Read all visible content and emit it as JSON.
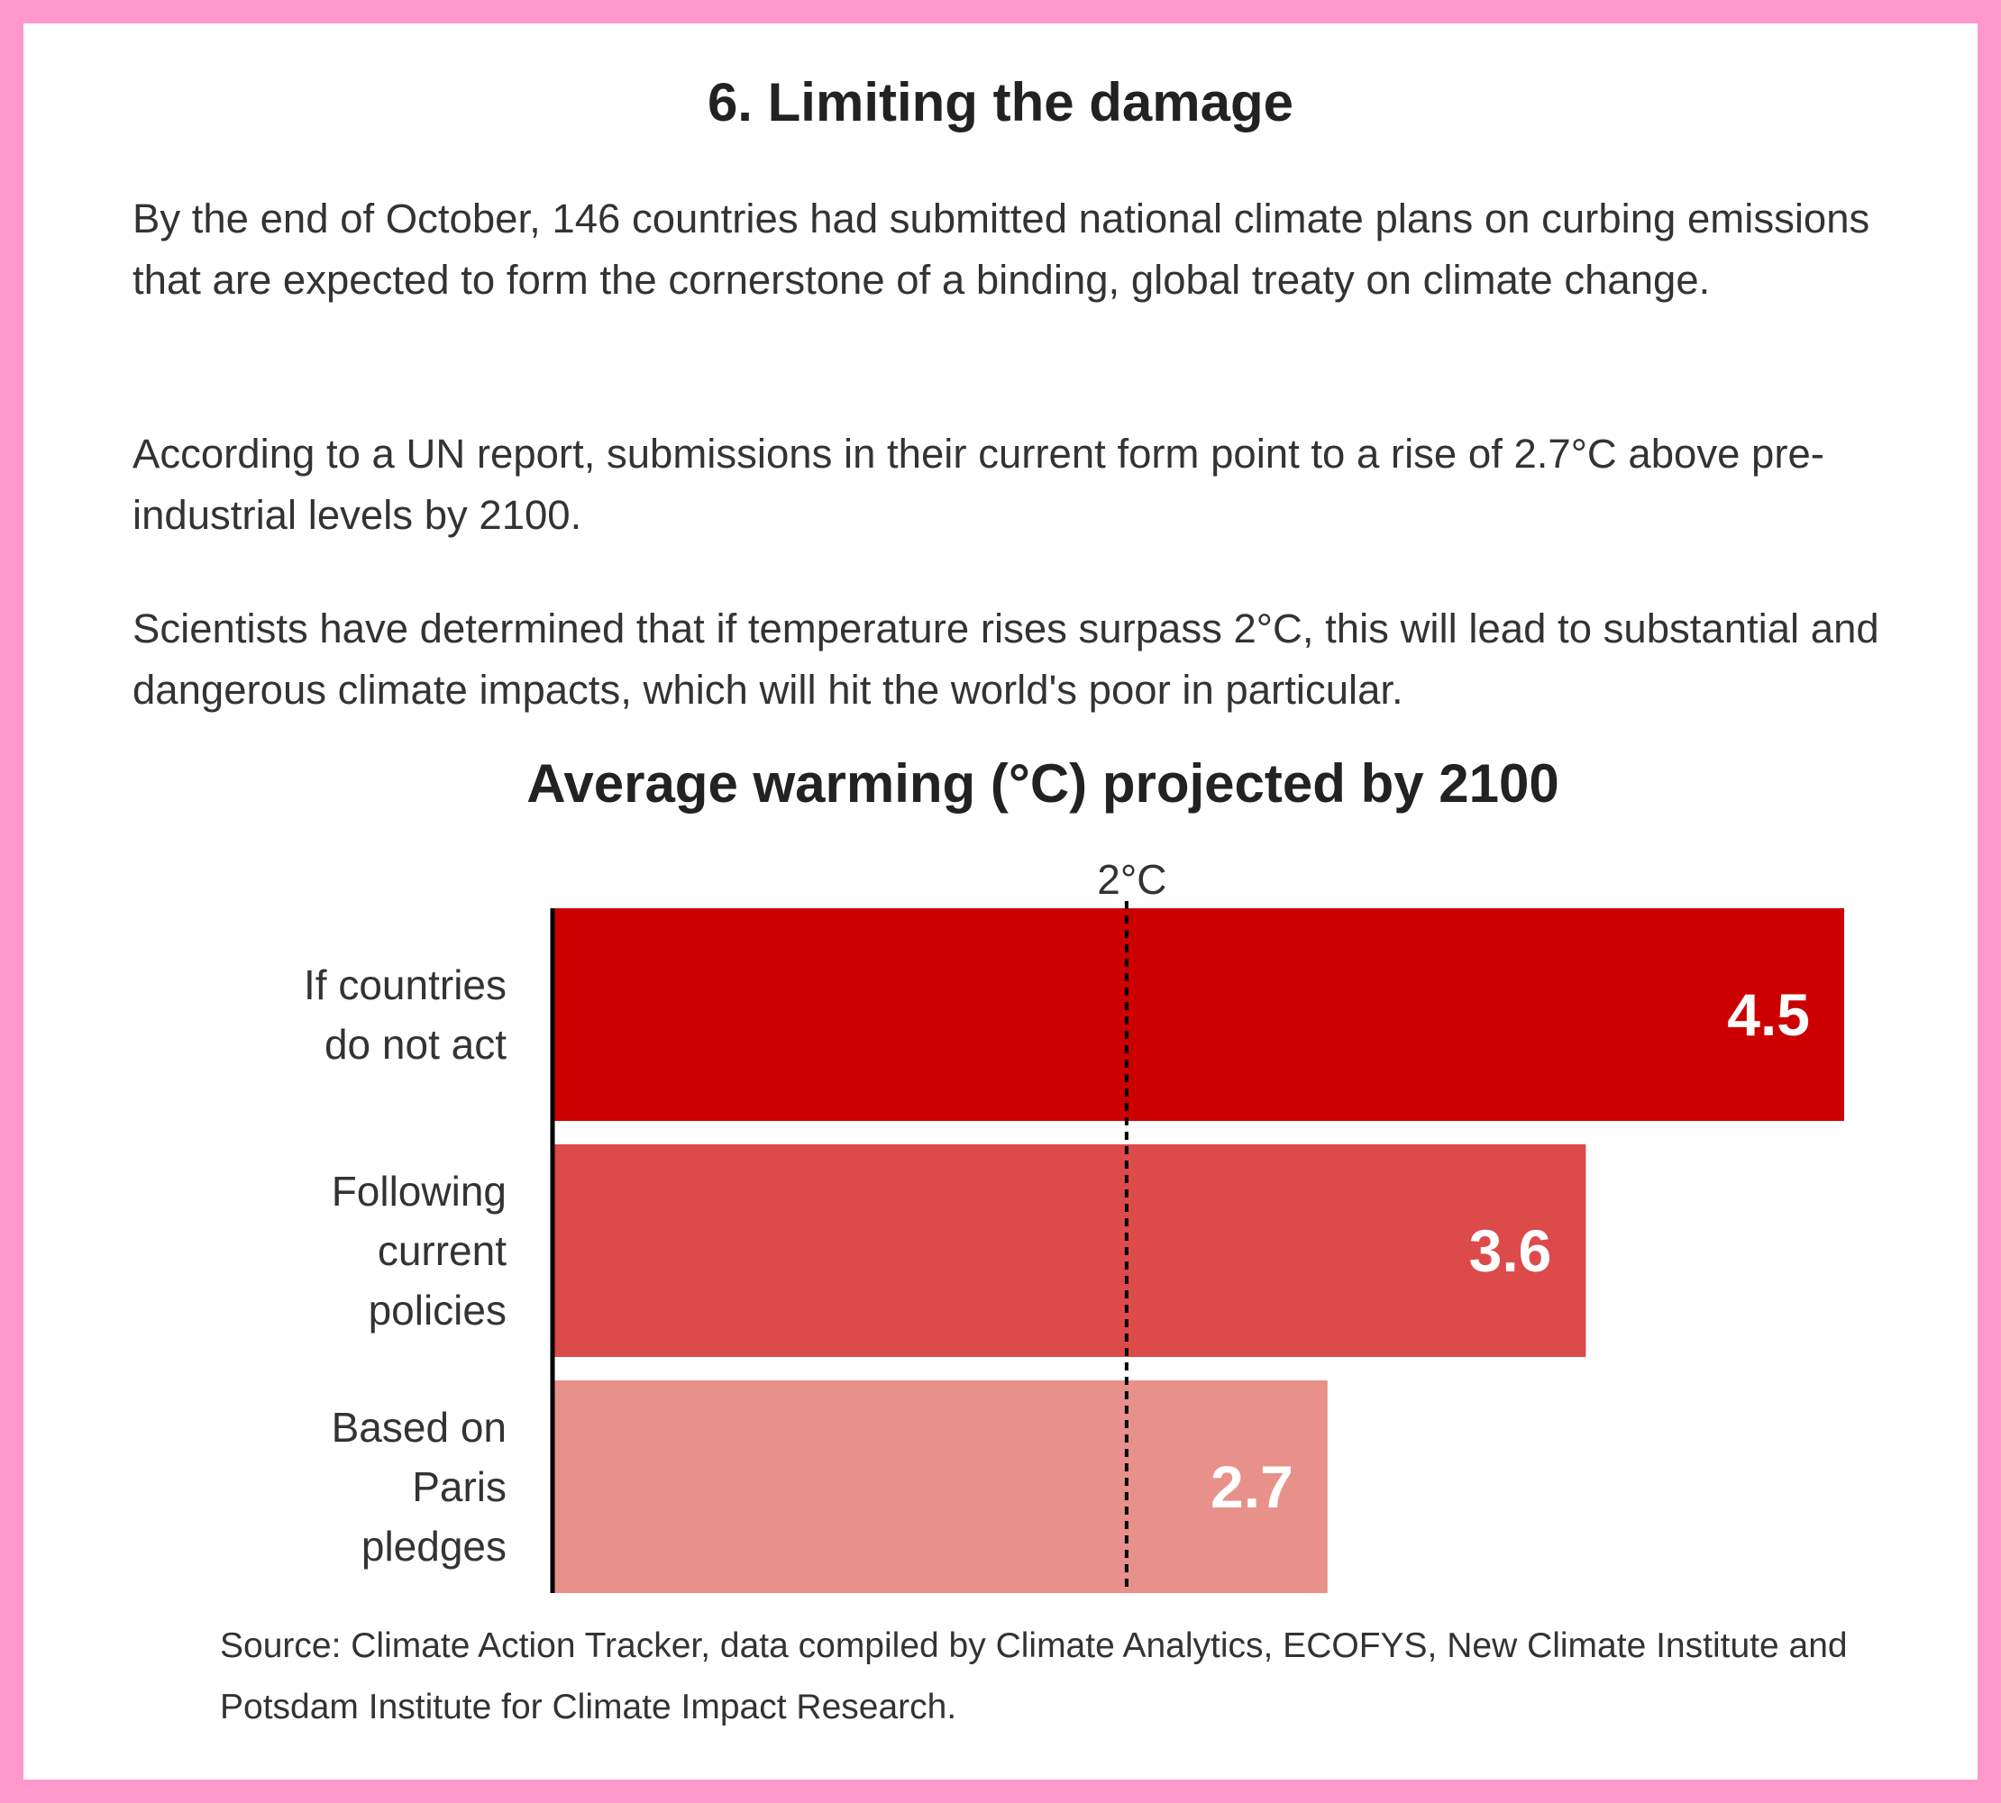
{
  "heading": "6. Limiting the damage",
  "paragraphs": [
    "By the end of October, 146 countries had submitted national climate plans on curbing emissions that are expected to form the cornerstone of a binding, global treaty on climate change.",
    "According to a UN report, submissions in their current form point to a rise of 2.7°C above pre-industrial levels by 2100.",
    "Scientists have determined that if temperature rises surpass 2°C, this will lead to substantial and dangerous climate impacts, which will hit the world's poor in particular."
  ],
  "chart_data": {
    "type": "bar",
    "orientation": "horizontal",
    "title": "Average warming (°C) projected by 2100",
    "categories": [
      [
        "If countries",
        "do not act"
      ],
      [
        "Following",
        "current",
        "policies"
      ],
      [
        "Based on",
        "Paris",
        "pledges"
      ]
    ],
    "values": [
      4.5,
      3.6,
      2.7
    ],
    "value_labels": [
      "4.5",
      "3.6",
      "2.7"
    ],
    "colors": [
      "#cc0000",
      "#dd4a4a",
      "#e8918a"
    ],
    "xlim": [
      0,
      4.5
    ],
    "reference_line": {
      "value": 2,
      "label": "2°C",
      "style": "dashed"
    },
    "xlabel": "",
    "ylabel": "",
    "grid": false,
    "legend": false
  },
  "source": "Source: Climate Action Tracker, data compiled by Climate Analytics, ECOFYS, New Climate Institute and Potsdam Institute for Climate Impact Research."
}
